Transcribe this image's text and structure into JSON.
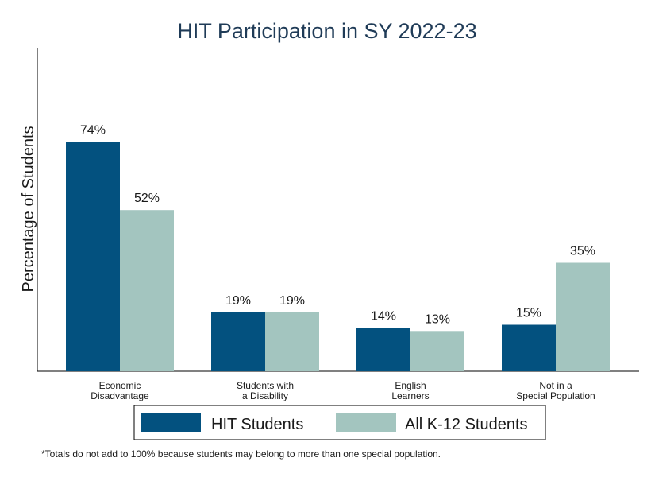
{
  "chart_data": {
    "type": "bar",
    "title": "HIT Participation in SY 2022-23",
    "xlabel": "",
    "ylabel": "Percentage of Students",
    "ylim": [
      0,
      100
    ],
    "grid": false,
    "legend_position": "bottom",
    "categories": [
      [
        "Economic",
        "Disadvantage"
      ],
      [
        "Students with",
        "a Disability"
      ],
      [
        "English",
        "Learners"
      ],
      [
        "Not in a",
        "Special Population"
      ]
    ],
    "series": [
      {
        "name": "HIT Students",
        "color": "#03517f",
        "values": [
          74,
          19,
          14,
          15
        ],
        "labels": [
          "74%",
          "19%",
          "14%",
          "15%"
        ]
      },
      {
        "name": "All K-12 Students",
        "color": "#a3c5bf",
        "values": [
          52,
          19,
          13,
          35
        ],
        "labels": [
          "52%",
          "19%",
          "13%",
          "35%"
        ]
      }
    ],
    "footnote": "*Totals do not add to 100% because students may belong to more than one special population."
  }
}
